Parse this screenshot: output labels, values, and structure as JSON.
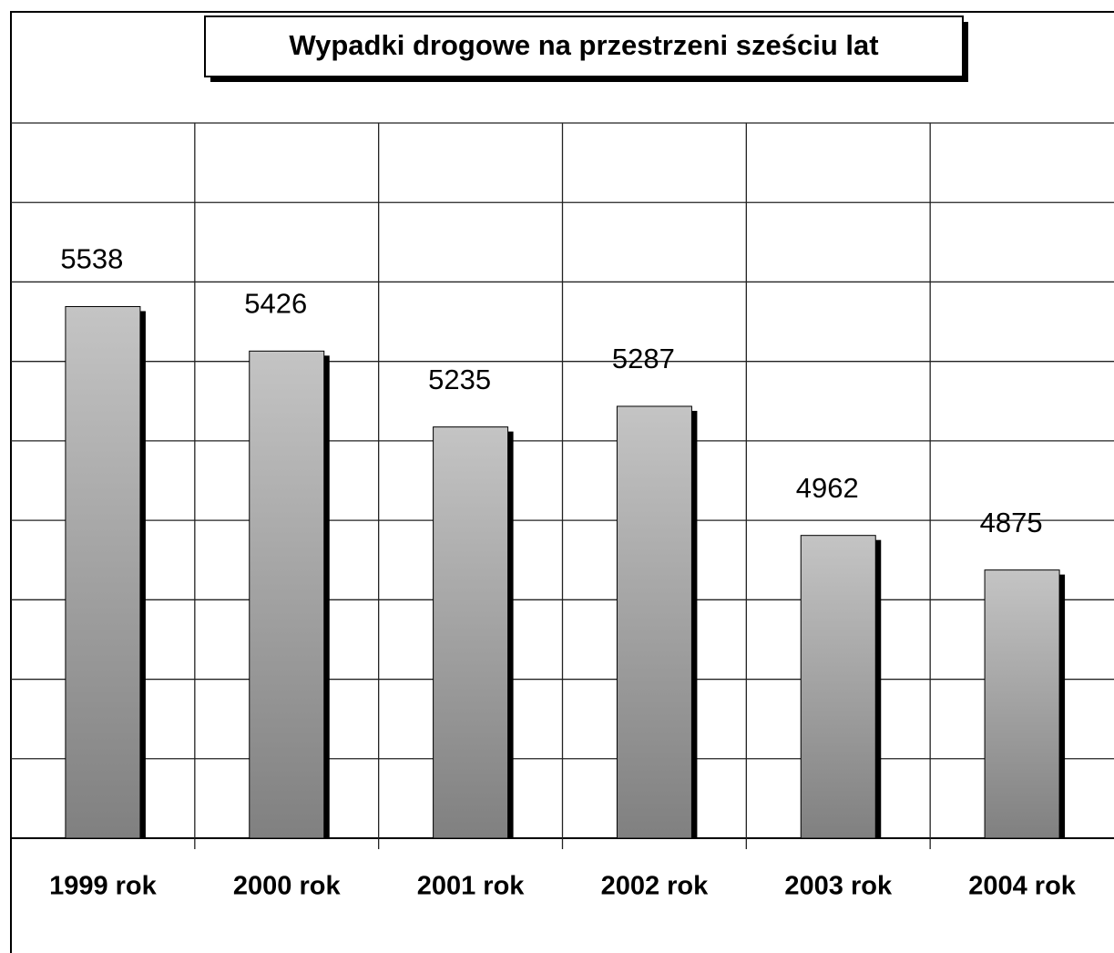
{
  "chart_data": {
    "type": "bar",
    "title": "Wypadki drogowe  na przestrzeni sześciu lat",
    "categories": [
      "1999 rok",
      "2000 rok",
      "2001 rok",
      "2002 rok",
      "2003 rok",
      "2004 rok"
    ],
    "values": [
      5538,
      5426,
      5235,
      5287,
      4962,
      4875
    ],
    "ylim": [
      4200,
      6000
    ],
    "yticks": [
      4200,
      4400,
      4600,
      4800,
      5000,
      5200,
      5400,
      5600,
      5800,
      6000
    ],
    "grid": true,
    "color": "#a8a8a8"
  }
}
